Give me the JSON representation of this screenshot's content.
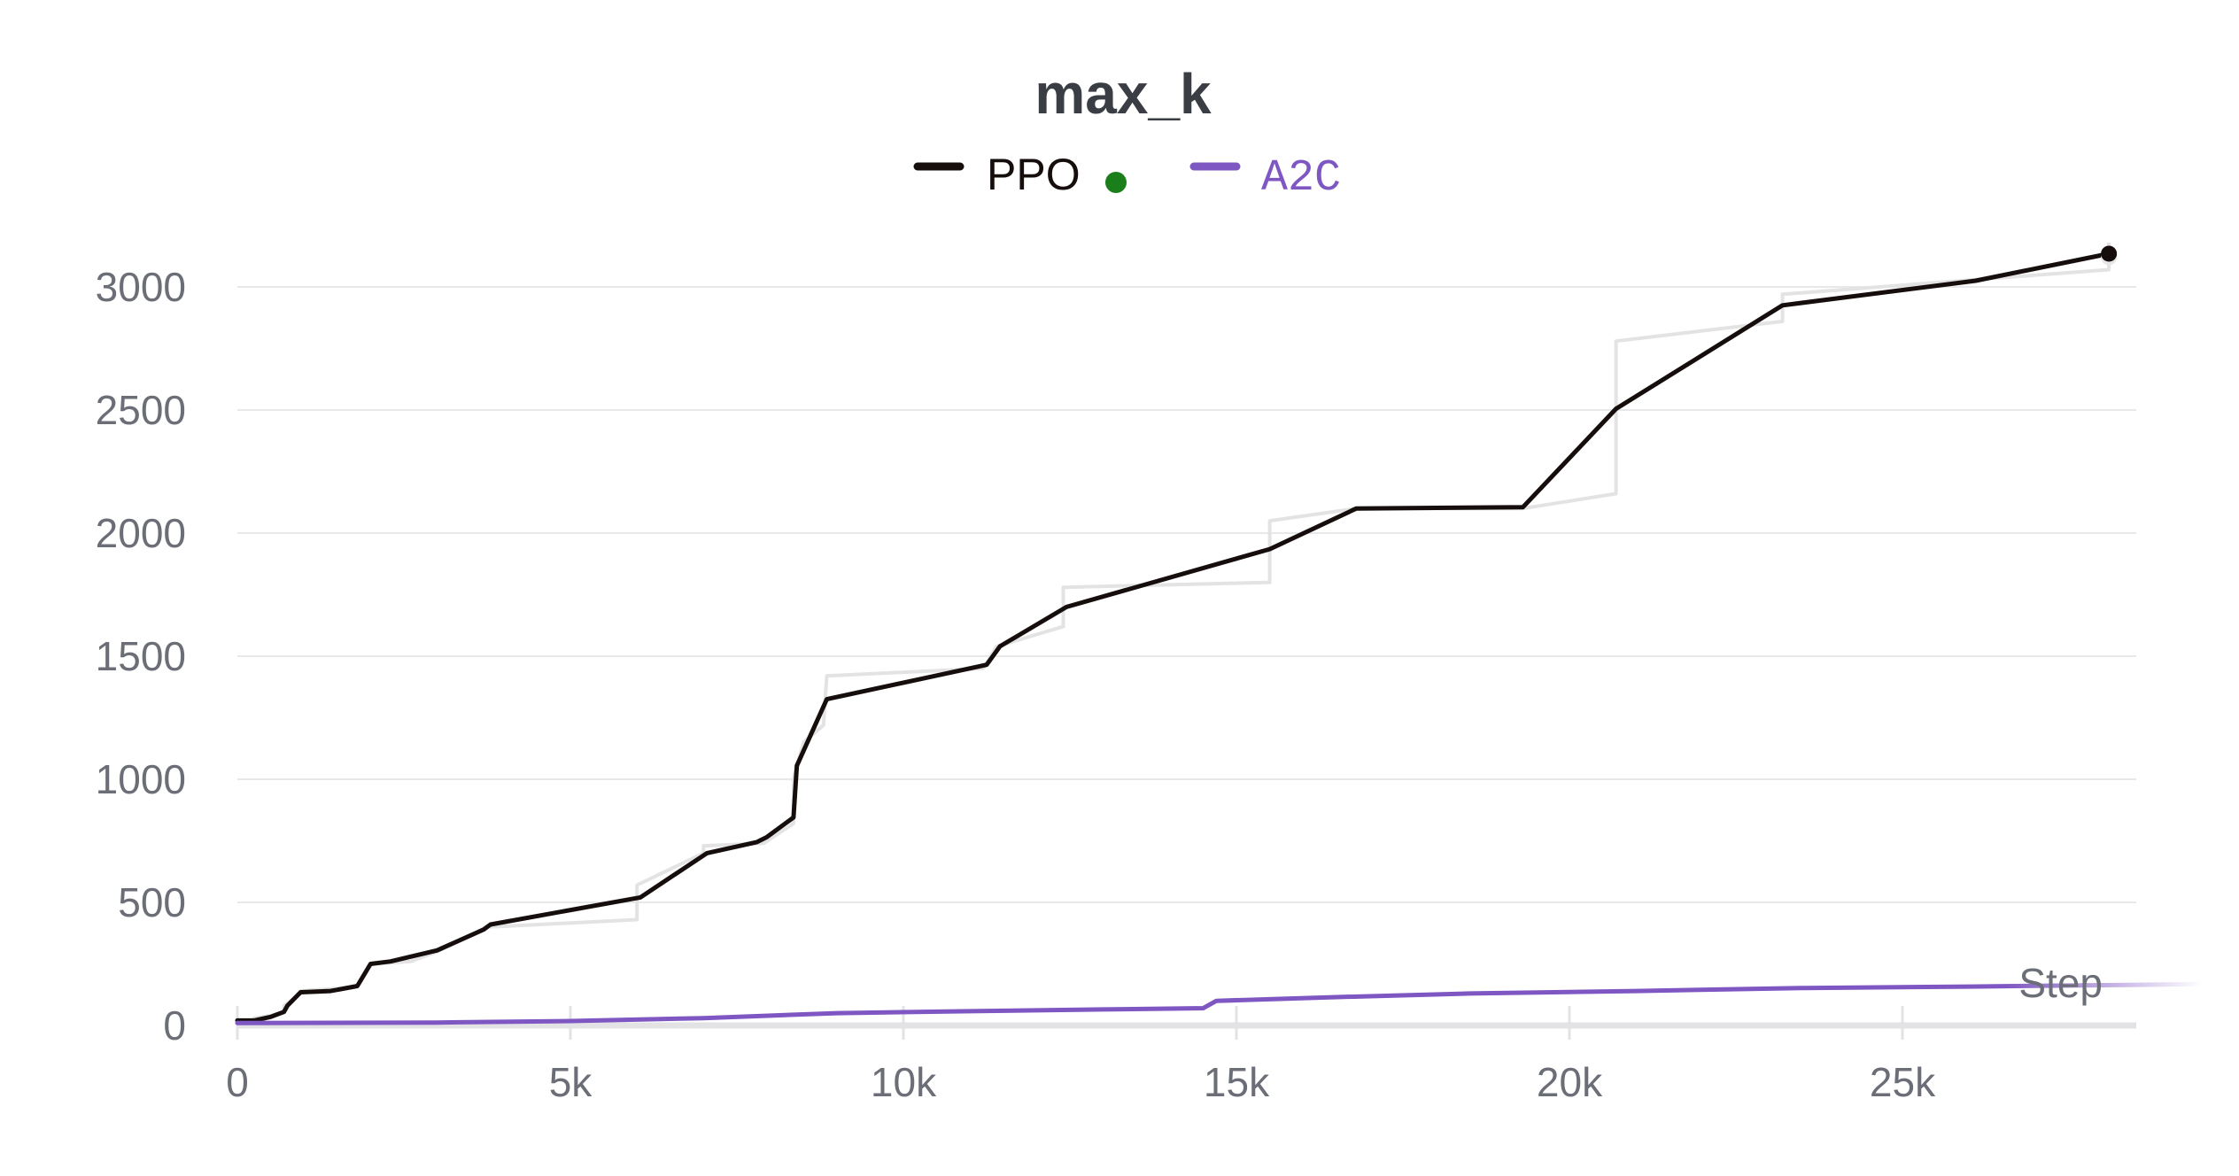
{
  "chart_data": {
    "type": "line",
    "title": "max_k",
    "xlabel": "Step",
    "ylabel": "",
    "xlim": [
      0,
      28500
    ],
    "ylim": [
      0,
      3300
    ],
    "x_ticks": [
      {
        "value": 0,
        "label": "0"
      },
      {
        "value": 5000,
        "label": "5k"
      },
      {
        "value": 10000,
        "label": "10k"
      },
      {
        "value": 15000,
        "label": "15k"
      },
      {
        "value": 20000,
        "label": "20k"
      },
      {
        "value": 25000,
        "label": "25k"
      }
    ],
    "y_ticks": [
      {
        "value": 0,
        "label": "0"
      },
      {
        "value": 500,
        "label": "500"
      },
      {
        "value": 1000,
        "label": "1000"
      },
      {
        "value": 1500,
        "label": "1500"
      },
      {
        "value": 2000,
        "label": "2000"
      },
      {
        "value": 2500,
        "label": "2500"
      },
      {
        "value": 3000,
        "label": "3000"
      }
    ],
    "grid": true,
    "legend_position": "top-center",
    "legend": [
      {
        "name": "PPO",
        "color": "#150e0c",
        "style": "line"
      },
      {
        "name": "A2C",
        "color": "#7e57c2",
        "style": "line"
      }
    ],
    "legend_status_dot_color": "#1a7f1a",
    "series": [
      {
        "name": "PPO",
        "color": "#150e0c",
        "smoothed": true,
        "raw_color": "#e3e3e3",
        "raw_points": [
          [
            0,
            20
          ],
          [
            250,
            20
          ],
          [
            250,
            30
          ],
          [
            500,
            40
          ],
          [
            700,
            55
          ],
          [
            700,
            80
          ],
          [
            950,
            130
          ],
          [
            950,
            140
          ],
          [
            1500,
            150
          ],
          [
            1800,
            160
          ],
          [
            2000,
            250
          ],
          [
            2600,
            260
          ],
          [
            3000,
            300
          ],
          [
            3600,
            380
          ],
          [
            3800,
            410
          ],
          [
            3800,
            400
          ],
          [
            6000,
            430
          ],
          [
            6000,
            570
          ],
          [
            7000,
            700
          ],
          [
            7000,
            730
          ],
          [
            7900,
            740
          ],
          [
            8350,
            820
          ],
          [
            8350,
            1000
          ],
          [
            8500,
            1150
          ],
          [
            8800,
            1220
          ],
          [
            8850,
            1420
          ],
          [
            11200,
            1450
          ],
          [
            11400,
            1540
          ],
          [
            12400,
            1620
          ],
          [
            12400,
            1780
          ],
          [
            15500,
            1800
          ],
          [
            15500,
            2050
          ],
          [
            16800,
            2100
          ],
          [
            19300,
            2100
          ],
          [
            20700,
            2160
          ],
          [
            20700,
            2780
          ],
          [
            23200,
            2860
          ],
          [
            23200,
            2970
          ],
          [
            26100,
            3030
          ],
          [
            28100,
            3070
          ],
          [
            28100,
            3180
          ]
        ],
        "points": [
          [
            0,
            20
          ],
          [
            250,
            20
          ],
          [
            500,
            35
          ],
          [
            700,
            55
          ],
          [
            750,
            80
          ],
          [
            950,
            135
          ],
          [
            1400,
            140
          ],
          [
            1800,
            160
          ],
          [
            2000,
            250
          ],
          [
            2300,
            260
          ],
          [
            3000,
            305
          ],
          [
            3700,
            390
          ],
          [
            3800,
            410
          ],
          [
            6050,
            520
          ],
          [
            7050,
            700
          ],
          [
            7800,
            745
          ],
          [
            7950,
            765
          ],
          [
            8350,
            845
          ],
          [
            8400,
            1055
          ],
          [
            8850,
            1325
          ],
          [
            11250,
            1465
          ],
          [
            11450,
            1540
          ],
          [
            12450,
            1700
          ],
          [
            15500,
            1935
          ],
          [
            16800,
            2100
          ],
          [
            19300,
            2105
          ],
          [
            20700,
            2505
          ],
          [
            23200,
            2925
          ],
          [
            26100,
            3025
          ],
          [
            28100,
            3135
          ]
        ],
        "end_marker": [
          28100,
          3135
        ]
      },
      {
        "name": "A2C",
        "color": "#7e57c2",
        "smoothed": false,
        "points": [
          [
            0,
            10
          ],
          [
            3000,
            12
          ],
          [
            5000,
            18
          ],
          [
            7000,
            30
          ],
          [
            9000,
            50
          ],
          [
            11000,
            58
          ],
          [
            13000,
            65
          ],
          [
            14500,
            70
          ],
          [
            14700,
            100
          ],
          [
            16500,
            115
          ],
          [
            18500,
            130
          ],
          [
            21000,
            140
          ],
          [
            23500,
            152
          ],
          [
            26000,
            158
          ],
          [
            29500,
            168
          ]
        ]
      }
    ]
  }
}
